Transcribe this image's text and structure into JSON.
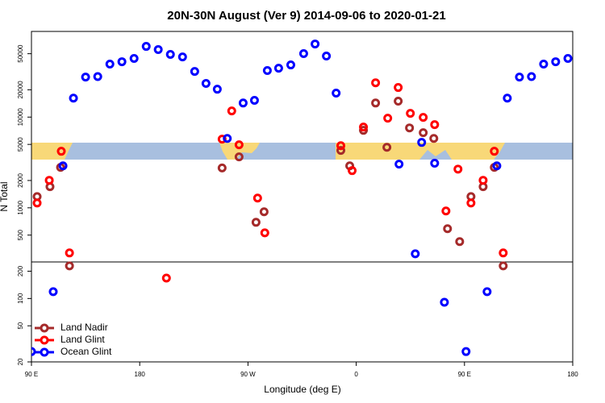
{
  "chart_data": {
    "type": "scatter",
    "title": "20N-30N August (Ver 9)   2014-09-06 to 2020-01-21",
    "x_label": "Longitude (deg E)",
    "y_label": "N Total",
    "xlim": [
      90,
      540
    ],
    "xticks": [
      {
        "value": 90,
        "label": "90 E"
      },
      180,
      {
        "value": 270,
        "label": "90 W"
      },
      {
        "value": 360,
        "label": "0"
      },
      {
        "value": 450,
        "label": "90 E"
      },
      {
        "value": 540,
        "label": "180"
      }
    ],
    "ylim": [
      20,
      88000
    ],
    "yticks": [
      20,
      50,
      100,
      200,
      500,
      1000,
      2000,
      5000,
      10000,
      20000,
      50000
    ],
    "log_y": true,
    "legend": "bottom-left",
    "series": [
      {
        "name": "Land Nadir",
        "color": "#a52a2a",
        "x": [
          94.7,
          105.4,
          114.2,
          121.6,
          248.5,
          262.6,
          276.7,
          283.4,
          347.2,
          354.6,
          366,
          376.1,
          385.5,
          394.9,
          404.3,
          415.7,
          424.5,
          435.9,
          446,
          455.4,
          465.5,
          474.8,
          482.2
        ],
        "values": [
          1330,
          1710,
          2790,
          229,
          2750,
          3640,
          692,
          904,
          4290,
          2900,
          7150,
          14300,
          4650,
          15000,
          7600,
          6730,
          5820,
          588,
          424,
          1330,
          1710,
          2790,
          229
        ]
      },
      {
        "name": "Land Glint",
        "color": "#ff0000",
        "x": [
          94.7,
          104.8,
          114.8,
          121.6,
          202.2,
          248.5,
          256.5,
          262.6,
          278,
          284,
          347.2,
          356.6,
          366,
          376.1,
          386.2,
          394.9,
          405,
          415.7,
          425.2,
          434.6,
          444.6,
          455.4,
          465.5,
          474.8,
          482.2
        ],
        "values": [
          1130,
          2010,
          4200,
          318,
          168,
          5710,
          11700,
          4950,
          1280,
          530,
          4840,
          2570,
          7760,
          23900,
          9720,
          21200,
          11000,
          9930,
          8260,
          922,
          2670,
          1130,
          2010,
          4200,
          318
        ]
      },
      {
        "name": "Ocean Glint",
        "color": "#0000ff",
        "x": [
          90,
          108.1,
          116.2,
          124.9,
          135,
          145.1,
          155.2,
          165.2,
          175.3,
          185.4,
          195.4,
          205.5,
          215.6,
          225.7,
          235.1,
          244.5,
          252.8,
          266,
          275.4,
          286.1,
          295.5,
          305.6,
          316.3,
          325.8,
          335.2,
          343.3,
          395.6,
          409.1,
          414.4,
          425.2,
          433.3,
          451.3,
          468.8,
          476.9,
          485.6,
          495.7,
          505.7,
          515.8,
          525.8,
          536
        ],
        "values": [
          26,
          119,
          2900,
          16200,
          27600,
          28000,
          38400,
          40800,
          44300,
          60200,
          55500,
          49100,
          46100,
          31900,
          23500,
          20300,
          5820,
          14300,
          15300,
          32600,
          34600,
          37600,
          50100,
          64000,
          47100,
          18400,
          3030,
          311,
          5260,
          3100,
          91,
          26,
          119,
          2900,
          16200,
          27600,
          28000,
          38400,
          40800,
          44300
        ]
      }
    ]
  }
}
